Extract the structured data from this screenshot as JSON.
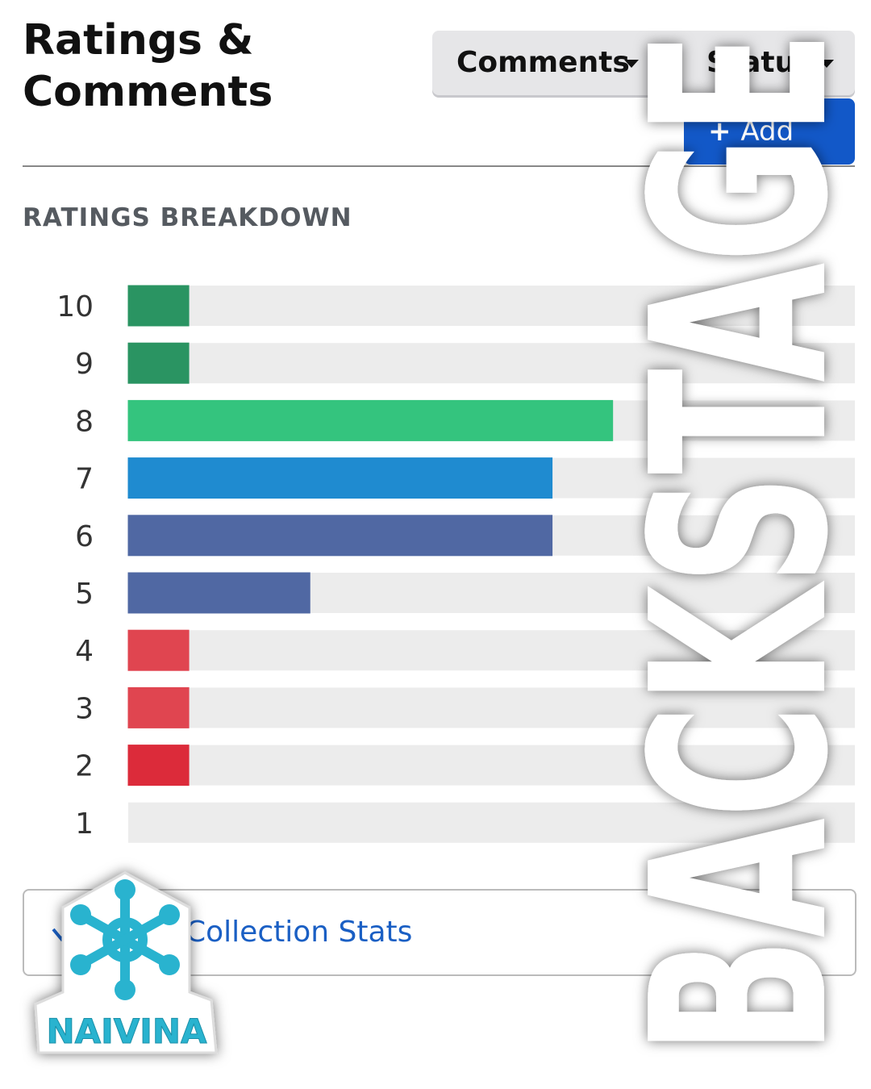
{
  "header": {
    "title": "Ratings & Comments",
    "buttons": [
      "Comments",
      "Status",
      "Add"
    ]
  },
  "chart_data": {
    "type": "bar",
    "orientation": "horizontal",
    "title": "RATINGS BREAKDOWN",
    "categories": [
      "10",
      "9",
      "8",
      "7",
      "6",
      "5",
      "4",
      "3",
      "2",
      "1"
    ],
    "values": [
      1,
      1,
      8,
      7,
      7,
      3,
      1,
      1,
      1,
      0
    ],
    "colors": [
      "#2a9462",
      "#2a9462",
      "#34c47e",
      "#1f8bd0",
      "#5068a3",
      "#5068a3",
      "#e04550",
      "#e04550",
      "#dc2b3a",
      "#dc2b3a"
    ],
    "xlim": [
      0,
      12
    ]
  },
  "footer": {
    "link": "Collection Stats"
  },
  "watermarks": {
    "text": "BACKSTAGE",
    "logo": "NAIVINA"
  }
}
